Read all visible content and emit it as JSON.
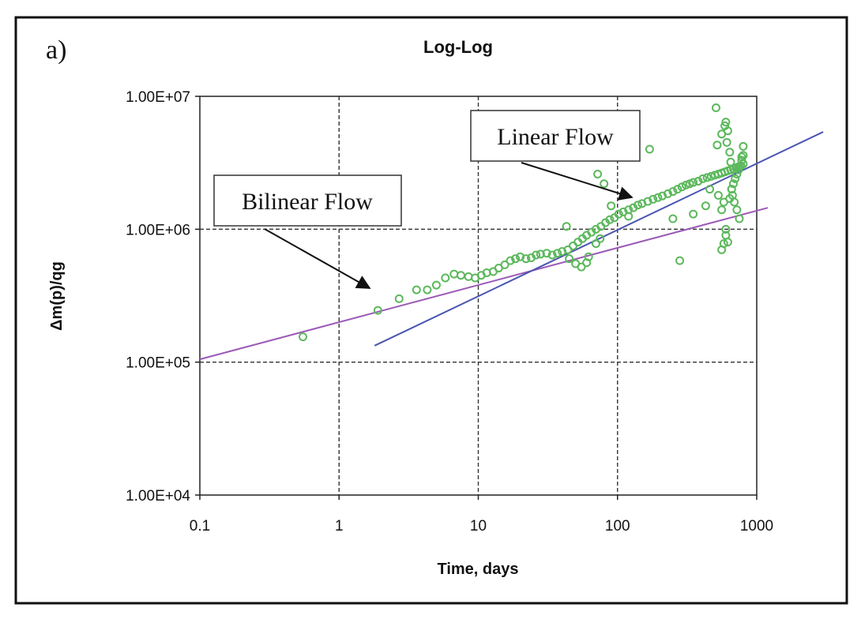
{
  "chart_data": {
    "type": "scatter",
    "panel_label": "a)",
    "title": "Log-Log",
    "xlabel": "Time, days",
    "ylabel": "Δm(p)/qg",
    "x_scale": "log",
    "y_scale": "log",
    "xlim": [
      0.1,
      1000
    ],
    "ylim": [
      10000,
      10000000
    ],
    "x_ticks": [
      "0.1",
      "1",
      "10",
      "100",
      "1000"
    ],
    "y_ticks": [
      "1.00E+04",
      "1.00E+05",
      "1.00E+06",
      "1.00E+07"
    ],
    "grid": true,
    "legend": "none",
    "colors": {
      "points": "#5cb85c",
      "bilinear_line": "#9b59b6",
      "linear_line": "#4a56b0",
      "grid": "#333333"
    },
    "annotations": [
      {
        "text": "Bilinear Flow",
        "points_to": [
          2.0,
          290000
        ]
      },
      {
        "text": "Linear Flow",
        "points_to": [
          150,
          1700000
        ]
      }
    ],
    "series": [
      {
        "kind": "points",
        "x": [
          0.55,
          1.9,
          2.7,
          3.6,
          4.3,
          5.0,
          5.8,
          6.7,
          7.5,
          8.5,
          9.5,
          10.5,
          11.5,
          12.8,
          14,
          15.5,
          17,
          18.5,
          20,
          22,
          24,
          26,
          28,
          31,
          34,
          37,
          40,
          44,
          48,
          52,
          56,
          60,
          65,
          70,
          76,
          82,
          88,
          95,
          102,
          110,
          120,
          130,
          140,
          150,
          165,
          180,
          195,
          210,
          230,
          250,
          270,
          290,
          310,
          330,
          350,
          380,
          410,
          440,
          470,
          500,
          530,
          560,
          590,
          620,
          650,
          680,
          710,
          740,
          770,
          800,
          43,
          45,
          50,
          55,
          60,
          62,
          70,
          75,
          80,
          72,
          90,
          120,
          170,
          250,
          280,
          350,
          430,
          460,
          510,
          530,
          560,
          580,
          600,
          620,
          640,
          660,
          680,
          700,
          720,
          740,
          760,
          780,
          800,
          520,
          560,
          590,
          600,
          610,
          620,
          640,
          650,
          660,
          670,
          690,
          720,
          750,
          780,
          800,
          560,
          580,
          600
        ],
        "y": [
          155000,
          245000,
          300000,
          350000,
          350000,
          380000,
          430000,
          460000,
          450000,
          440000,
          430000,
          450000,
          470000,
          480000,
          510000,
          540000,
          580000,
          600000,
          620000,
          600000,
          610000,
          640000,
          650000,
          660000,
          640000,
          660000,
          680000,
          700000,
          750000,
          800000,
          850000,
          900000,
          950000,
          1000000,
          1050000,
          1120000,
          1180000,
          1220000,
          1300000,
          1350000,
          1400000,
          1450000,
          1520000,
          1560000,
          1620000,
          1680000,
          1730000,
          1780000,
          1850000,
          1920000,
          2000000,
          2080000,
          2150000,
          2200000,
          2250000,
          2300000,
          2400000,
          2450000,
          2500000,
          2550000,
          2600000,
          2650000,
          2700000,
          2750000,
          2800000,
          2850000,
          2900000,
          2950000,
          3000000,
          3100000,
          1050000,
          600000,
          550000,
          520000,
          560000,
          620000,
          780000,
          850000,
          2200000,
          2600000,
          1500000,
          1250000,
          4000000,
          1200000,
          580000,
          1300000,
          1500000,
          2000000,
          8200000,
          1800000,
          1400000,
          1600000,
          900000,
          800000,
          1700000,
          2000000,
          2200000,
          2400000,
          2600000,
          2800000,
          3000000,
          3300000,
          3600000,
          4300000,
          5200000,
          6000000,
          6400000,
          4500000,
          5500000,
          3800000,
          3200000,
          2000000,
          1800000,
          1600000,
          1400000,
          1200000,
          3500000,
          4200000,
          700000,
          780000,
          1000000
        ]
      },
      {
        "kind": "line",
        "name": "",
        "x": [
          0.1,
          1200
        ],
        "y": [
          105000,
          1450000
        ]
      },
      {
        "kind": "line",
        "name": "",
        "x": [
          1.8,
          3000
        ],
        "y": [
          133000,
          5400000
        ]
      }
    ]
  }
}
